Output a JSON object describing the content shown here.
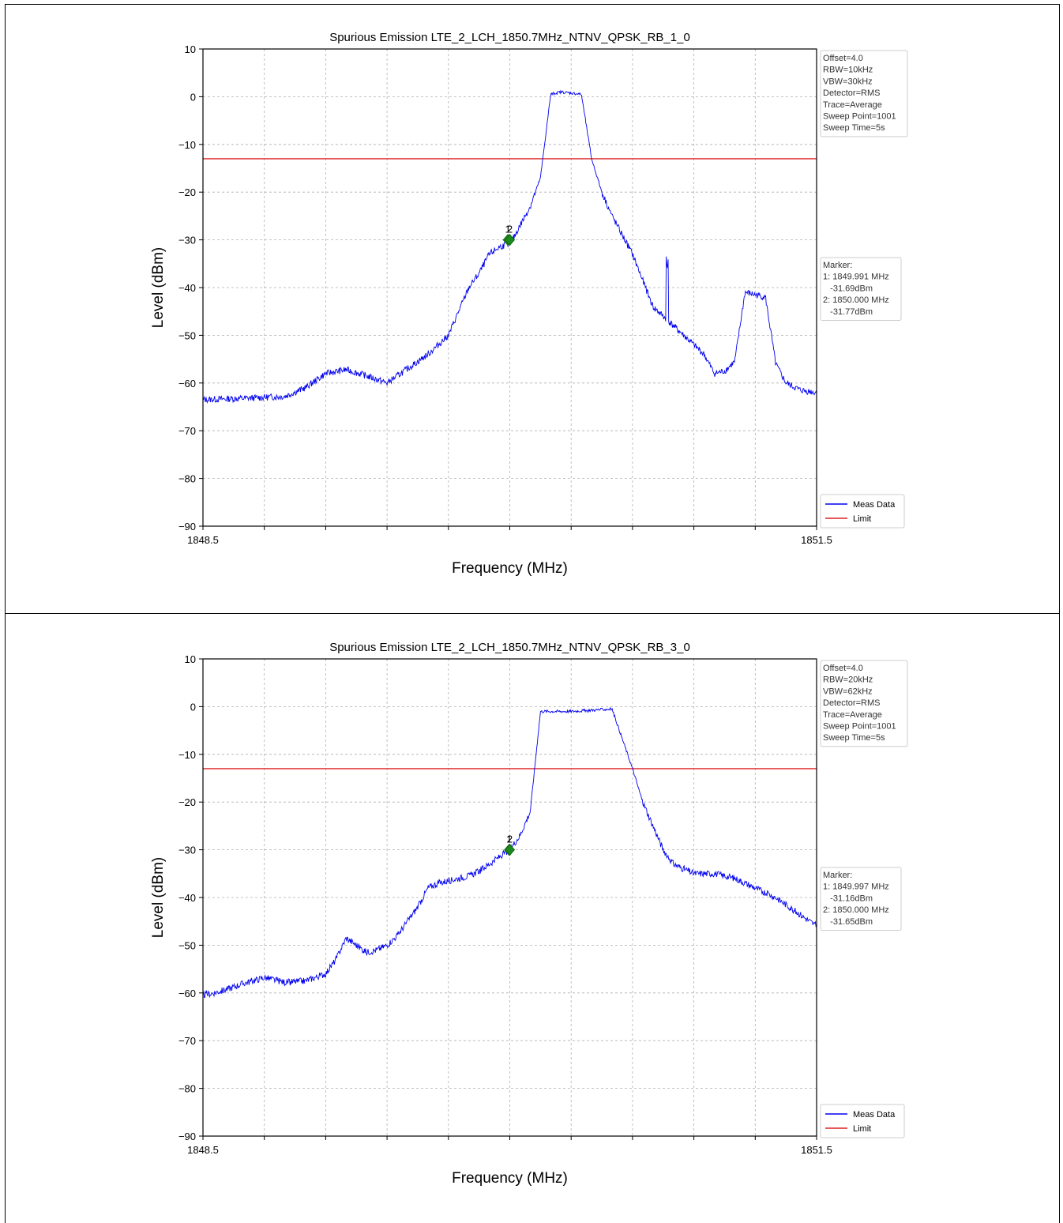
{
  "chart_data": [
    {
      "type": "line",
      "title": "Spurious Emission LTE_2_LCH_1850.7MHz_NTNV_QPSK_RB_1_0",
      "xlabel": "Frequency (MHz)",
      "ylabel": "Level (dBm)",
      "xlim": [
        1848.5,
        1851.5
      ],
      "ylim": [
        -90,
        10
      ],
      "x_tick_labels": [
        "1848.5",
        "1851.5"
      ],
      "y_ticks": [
        10,
        0,
        -10,
        -20,
        -30,
        -40,
        -50,
        -60,
        -70,
        -80,
        -90
      ],
      "grid": true,
      "settings": [
        "Offset=4.0",
        "RBW=10kHz",
        "VBW=30kHz",
        "Detector=RMS",
        "Trace=Average",
        "Sweep Point=1001",
        "Sweep Time=5s"
      ],
      "markers_box": [
        "Marker:",
        "1: 1849.991 MHz",
        "   -31.69dBm",
        "2: 1850.000 MHz",
        "   -31.77dBm"
      ],
      "markers": [
        {
          "label": "1",
          "x": 1849.991,
          "y": -31.69
        },
        {
          "label": "2",
          "x": 1850.0,
          "y": -31.77
        }
      ],
      "legend": {
        "position": "bottom-right",
        "entries": [
          "Meas Data",
          "Limit"
        ]
      },
      "limit": -13,
      "series": [
        {
          "name": "Meas Data",
          "color": "#0000ee",
          "x": [
            1848.5,
            1848.7,
            1848.9,
            1849.0,
            1849.1,
            1849.2,
            1849.3,
            1849.4,
            1849.5,
            1849.6,
            1849.7,
            1849.8,
            1849.85,
            1849.9,
            1849.95,
            1849.98,
            1850.0,
            1850.05,
            1850.1,
            1850.15,
            1850.2,
            1850.25,
            1850.35,
            1850.4,
            1850.45,
            1850.5,
            1850.6,
            1850.7,
            1850.8,
            1850.85,
            1850.9,
            1850.95,
            1851.0,
            1851.05,
            1851.1,
            1851.15,
            1851.2,
            1851.25,
            1851.3,
            1851.35,
            1851.42,
            1851.5
          ],
          "y": [
            -63.5,
            -63.2,
            -62.8,
            -61,
            -58,
            -57.2,
            -58.5,
            -60,
            -57,
            -54,
            -50,
            -40,
            -37,
            -33,
            -31.5,
            -31,
            -31,
            -27,
            -23,
            -17,
            0.5,
            1,
            0.5,
            -13,
            -20,
            -25,
            -33,
            -44,
            -48,
            -50,
            -52,
            -54,
            -58,
            -57.5,
            -55.5,
            -41,
            -41.5,
            -42,
            -56,
            -60,
            -61.5,
            -62
          ]
        },
        {
          "name": "Limit",
          "color": "#dd2222",
          "x": [
            1848.5,
            1851.5
          ],
          "y": [
            -13,
            -13
          ]
        }
      ],
      "spur": {
        "x": 1850.77,
        "y": -36.5
      }
    },
    {
      "type": "line",
      "title": "Spurious Emission LTE_2_LCH_1850.7MHz_NTNV_QPSK_RB_3_0",
      "xlabel": "Frequency (MHz)",
      "ylabel": "Level (dBm)",
      "xlim": [
        1848.5,
        1851.5
      ],
      "ylim": [
        -90,
        10
      ],
      "x_tick_labels": [
        "1848.5",
        "1851.5"
      ],
      "y_ticks": [
        10,
        0,
        -10,
        -20,
        -30,
        -40,
        -50,
        -60,
        -70,
        -80,
        -90
      ],
      "grid": true,
      "settings": [
        "Offset=4.0",
        "RBW=20kHz",
        "VBW=62kHz",
        "Detector=RMS",
        "Trace=Average",
        "Sweep Point=1001",
        "Sweep Time=5s"
      ],
      "markers_box": [
        "Marker:",
        "1: 1849.997 MHz",
        "   -31.16dBm",
        "2: 1850.000 MHz",
        "   -31.65dBm"
      ],
      "markers": [
        {
          "label": "1",
          "x": 1849.997,
          "y": -31.16
        },
        {
          "label": "2",
          "x": 1850.0,
          "y": -31.65
        }
      ],
      "legend": {
        "position": "bottom-right",
        "entries": [
          "Meas Data",
          "Limit"
        ]
      },
      "limit": -13,
      "series": [
        {
          "name": "Meas Data",
          "color": "#0000ee",
          "x": [
            1848.5,
            1848.6,
            1848.7,
            1848.8,
            1848.9,
            1849.0,
            1849.1,
            1849.15,
            1849.2,
            1849.25,
            1849.3,
            1849.35,
            1849.4,
            1849.45,
            1849.5,
            1849.55,
            1849.6,
            1849.65,
            1849.7,
            1849.75,
            1849.8,
            1849.85,
            1849.9,
            1849.95,
            1850.0,
            1850.05,
            1850.1,
            1850.15,
            1850.3,
            1850.5,
            1850.6,
            1850.65,
            1850.7,
            1850.75,
            1850.8,
            1850.85,
            1850.9,
            1850.95,
            1851.0,
            1851.1,
            1851.2,
            1851.3,
            1851.4,
            1851.5
          ],
          "y": [
            -60.5,
            -59.5,
            -58,
            -56.8,
            -57.8,
            -57.5,
            -56,
            -53,
            -48.5,
            -50,
            -51.5,
            -51,
            -50,
            -48,
            -45,
            -42,
            -38,
            -37,
            -36.5,
            -36,
            -35.5,
            -34.5,
            -33,
            -31.5,
            -30,
            -27,
            -22,
            -1,
            -1,
            -0.5,
            -13,
            -20,
            -25,
            -30,
            -33,
            -34,
            -35,
            -35,
            -35,
            -36,
            -38,
            -40,
            -43,
            -46
          ]
        },
        {
          "name": "Limit",
          "color": "#dd2222",
          "x": [
            1848.5,
            1851.5
          ],
          "y": [
            -13,
            -13
          ]
        }
      ]
    }
  ]
}
